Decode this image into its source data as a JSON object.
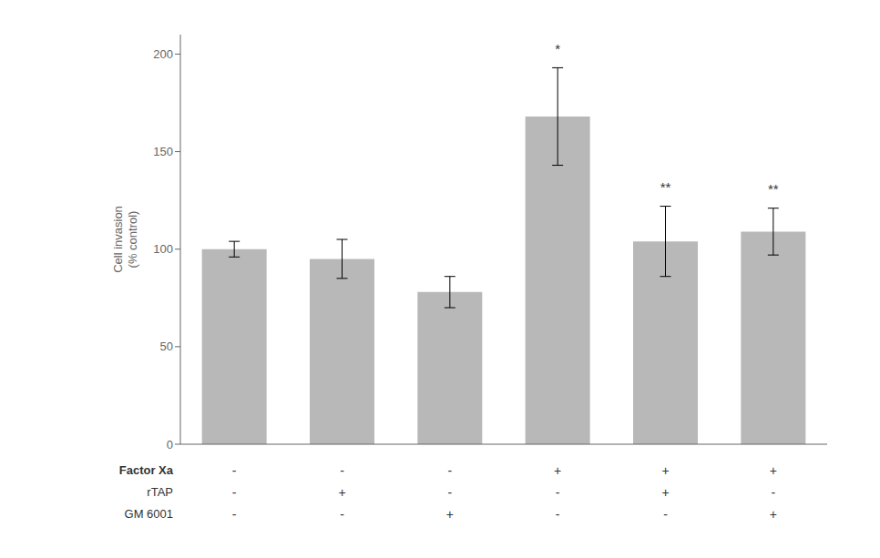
{
  "chart_data": {
    "type": "bar",
    "ylabel": "Cell invasion\n(% control)",
    "categories": [
      null,
      null,
      null,
      null,
      null,
      null
    ],
    "values": [
      100,
      95,
      78,
      168,
      104,
      109
    ],
    "errors": [
      4,
      10,
      8,
      25,
      18,
      12
    ],
    "color": "#b8b8b8",
    "ylim": [
      0,
      210
    ],
    "yticks": [
      0,
      50,
      100,
      150,
      200
    ],
    "tick_labels": "y",
    "sign_table": [
      {
        "label": "Factor Xa",
        "signs": [
          "-",
          "-",
          "-",
          "+",
          "+",
          "+"
        ]
      },
      {
        "label": "rTAP",
        "signs": [
          "-",
          "+",
          "-",
          "-",
          "+",
          "-"
        ]
      },
      {
        "label": "GM 6001",
        "signs": [
          "-",
          "-",
          "+",
          "-",
          "-",
          "+"
        ]
      }
    ],
    "annotations": [
      {
        "text": "*",
        "index": 3,
        "y": 197
      },
      {
        "text": "**",
        "index": 4,
        "y": 126
      },
      {
        "text": "**",
        "index": 5,
        "y": 125
      }
    ]
  }
}
